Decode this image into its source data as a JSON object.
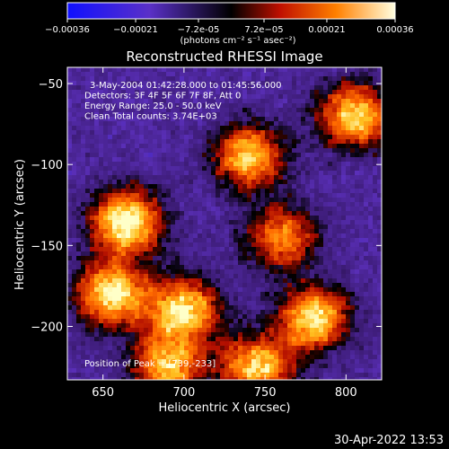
{
  "chart_data": {
    "type": "heatmap",
    "title": "Reconstructed RHESSI Image",
    "xlabel": "Heliocentric X (arcsec)",
    "ylabel": "Heliocentric Y (arcsec)",
    "xlim": [
      628,
      822
    ],
    "ylim": [
      -233,
      -40
    ],
    "xticks": [
      650,
      700,
      750,
      800
    ],
    "yticks": [
      -50,
      -100,
      -150,
      -200
    ],
    "colorbar": {
      "range": [
        -0.00036,
        0.00036
      ],
      "tick_labels": [
        "-0.00036",
        "-0.00021",
        "-7.2e-05",
        "7.2e-05",
        "0.00021",
        "0.00036"
      ],
      "label": "(photons cm⁻² s⁻¹ asec⁻²)",
      "colors": [
        "#1010ff",
        "#6030c0",
        "#000000",
        "#c01000",
        "#ff8000",
        "#ffffd0"
      ]
    },
    "annotations": [
      "3-May-2004 01:42:28.000 to 01:45:56.000",
      "Detectors: 3F 4F 5F 6F 7F 8F, Att 0",
      "Energy Range: 25.0 - 50.0 keV",
      "Clean     Total counts: 3.74E+03"
    ],
    "peak_label": "Position of Peak = [739,-233]",
    "peak_position": [
      739,
      -233
    ],
    "bright_regions": [
      {
        "x": 665,
        "y": -135,
        "intensity": 1.0
      },
      {
        "x": 655,
        "y": -180,
        "intensity": 0.95
      },
      {
        "x": 700,
        "y": -190,
        "intensity": 0.9
      },
      {
        "x": 740,
        "y": -95,
        "intensity": 0.85
      },
      {
        "x": 780,
        "y": -195,
        "intensity": 0.9
      },
      {
        "x": 805,
        "y": -70,
        "intensity": 0.9
      },
      {
        "x": 760,
        "y": -145,
        "intensity": 0.7
      },
      {
        "x": 690,
        "y": -225,
        "intensity": 0.8
      },
      {
        "x": 745,
        "y": -225,
        "intensity": 0.85
      }
    ]
  },
  "footer": "30-Apr-2022 13:53"
}
